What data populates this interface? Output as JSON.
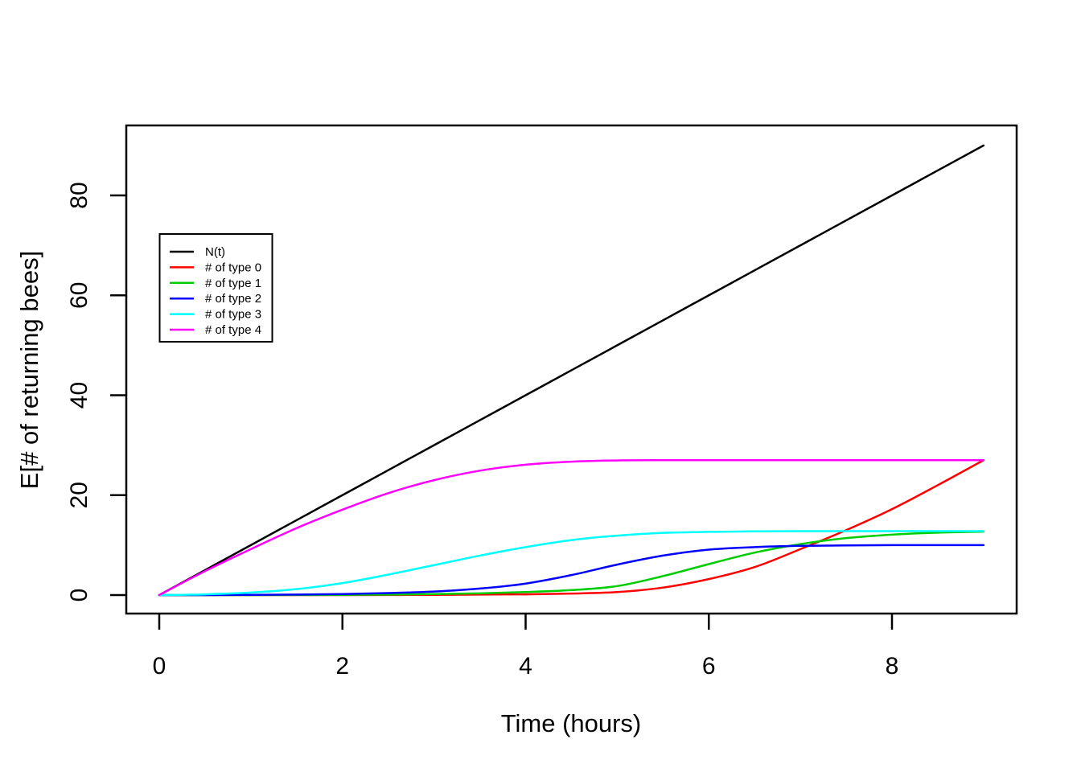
{
  "figure": {
    "background": "#FFFFFF",
    "frame_color": "#000000"
  },
  "chart_data": {
    "type": "line",
    "title": "",
    "xlabel": "Time (hours)",
    "ylabel": "E[# of returning bees]",
    "xlim": [
      0,
      9
    ],
    "ylim": [
      0,
      90
    ],
    "xticks": [
      0,
      2,
      4,
      6,
      8
    ],
    "yticks": [
      0,
      20,
      40,
      60,
      80
    ],
    "grid": false,
    "legend_position": "upper-left-inside",
    "x": [
      0,
      0.5,
      1,
      1.5,
      2,
      2.5,
      3,
      3.5,
      4,
      4.5,
      5,
      5.5,
      6,
      6.5,
      7,
      7.5,
      8,
      8.5,
      9
    ],
    "series": [
      {
        "name": "N(t)",
        "color": "#000000",
        "values": [
          0,
          5,
          10,
          15,
          20,
          25,
          30,
          35,
          40,
          45,
          50,
          55,
          60,
          65,
          70,
          75,
          80,
          85,
          90
        ]
      },
      {
        "name": "# of type 0",
        "color": "#FF0000",
        "values": [
          0,
          0,
          0,
          0,
          0,
          0.02,
          0.05,
          0.1,
          0.15,
          0.3,
          0.6,
          1.5,
          3.2,
          5.6,
          9.2,
          13.0,
          17.2,
          22.0,
          27.0
        ]
      },
      {
        "name": "# of type 1",
        "color": "#00CD00",
        "values": [
          0,
          0,
          0.01,
          0.02,
          0.05,
          0.1,
          0.2,
          0.35,
          0.6,
          1.0,
          1.8,
          3.8,
          6.2,
          8.5,
          10.2,
          11.4,
          12.1,
          12.5,
          12.7
        ]
      },
      {
        "name": "# of type 2",
        "color": "#0000FF",
        "values": [
          0,
          0.01,
          0.05,
          0.1,
          0.2,
          0.4,
          0.7,
          1.3,
          2.3,
          4.0,
          6.1,
          7.9,
          9.1,
          9.6,
          9.85,
          9.95,
          10,
          10,
          10
        ]
      },
      {
        "name": "# of type 3",
        "color": "#00FFFF",
        "values": [
          0,
          0.15,
          0.5,
          1.2,
          2.4,
          4.1,
          6.0,
          7.9,
          9.6,
          11.0,
          11.9,
          12.45,
          12.65,
          12.75,
          12.8,
          12.8,
          12.8,
          12.8,
          12.8
        ]
      },
      {
        "name": "# of type 4",
        "color": "#FF00FF",
        "values": [
          0,
          4.8,
          9.2,
          13.4,
          17.1,
          20.4,
          23.0,
          24.9,
          26.1,
          26.7,
          26.95,
          27,
          27,
          27,
          27,
          27,
          27,
          27,
          27
        ]
      }
    ]
  }
}
